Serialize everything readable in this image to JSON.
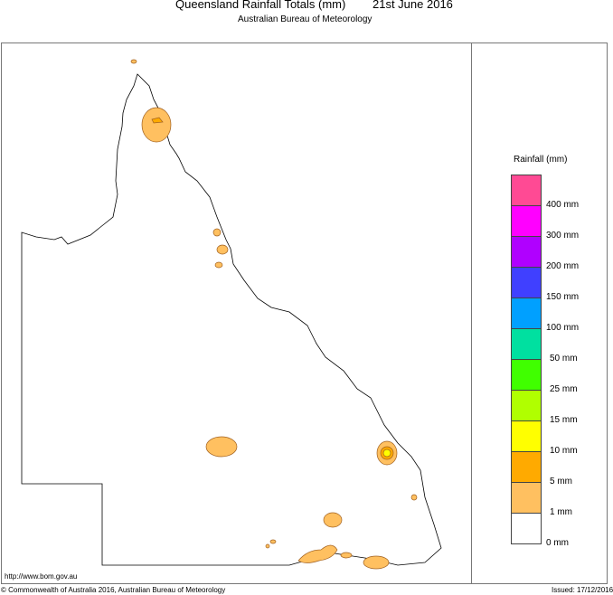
{
  "header": {
    "title": "Queensland Rainfall Totals (mm)",
    "date": "21st June 2016",
    "subtitle": "Australian Bureau of Meteorology"
  },
  "legend": {
    "title": "Rainfall (mm)",
    "colors": [
      "#ff4a94",
      "#ff00ff",
      "#b000ff",
      "#4040ff",
      "#00a0ff",
      "#00e0a0",
      "#40ff00",
      "#b0ff00",
      "#ffff00",
      "#ffaa00",
      "#ffc060",
      "#ffffff"
    ],
    "labels": [
      "400 mm",
      "300 mm",
      "200 mm",
      "150 mm",
      "100 mm",
      "50 mm",
      "25 mm",
      "15 mm",
      "10 mm",
      "5 mm",
      "1 mm",
      "0 mm"
    ]
  },
  "footer": {
    "url": "http://www.bom.gov.au",
    "copyright": "© Commonwealth of Australia 2016, Australian Bureau of Meteorology",
    "issued": "Issued: 17/12/2016"
  }
}
